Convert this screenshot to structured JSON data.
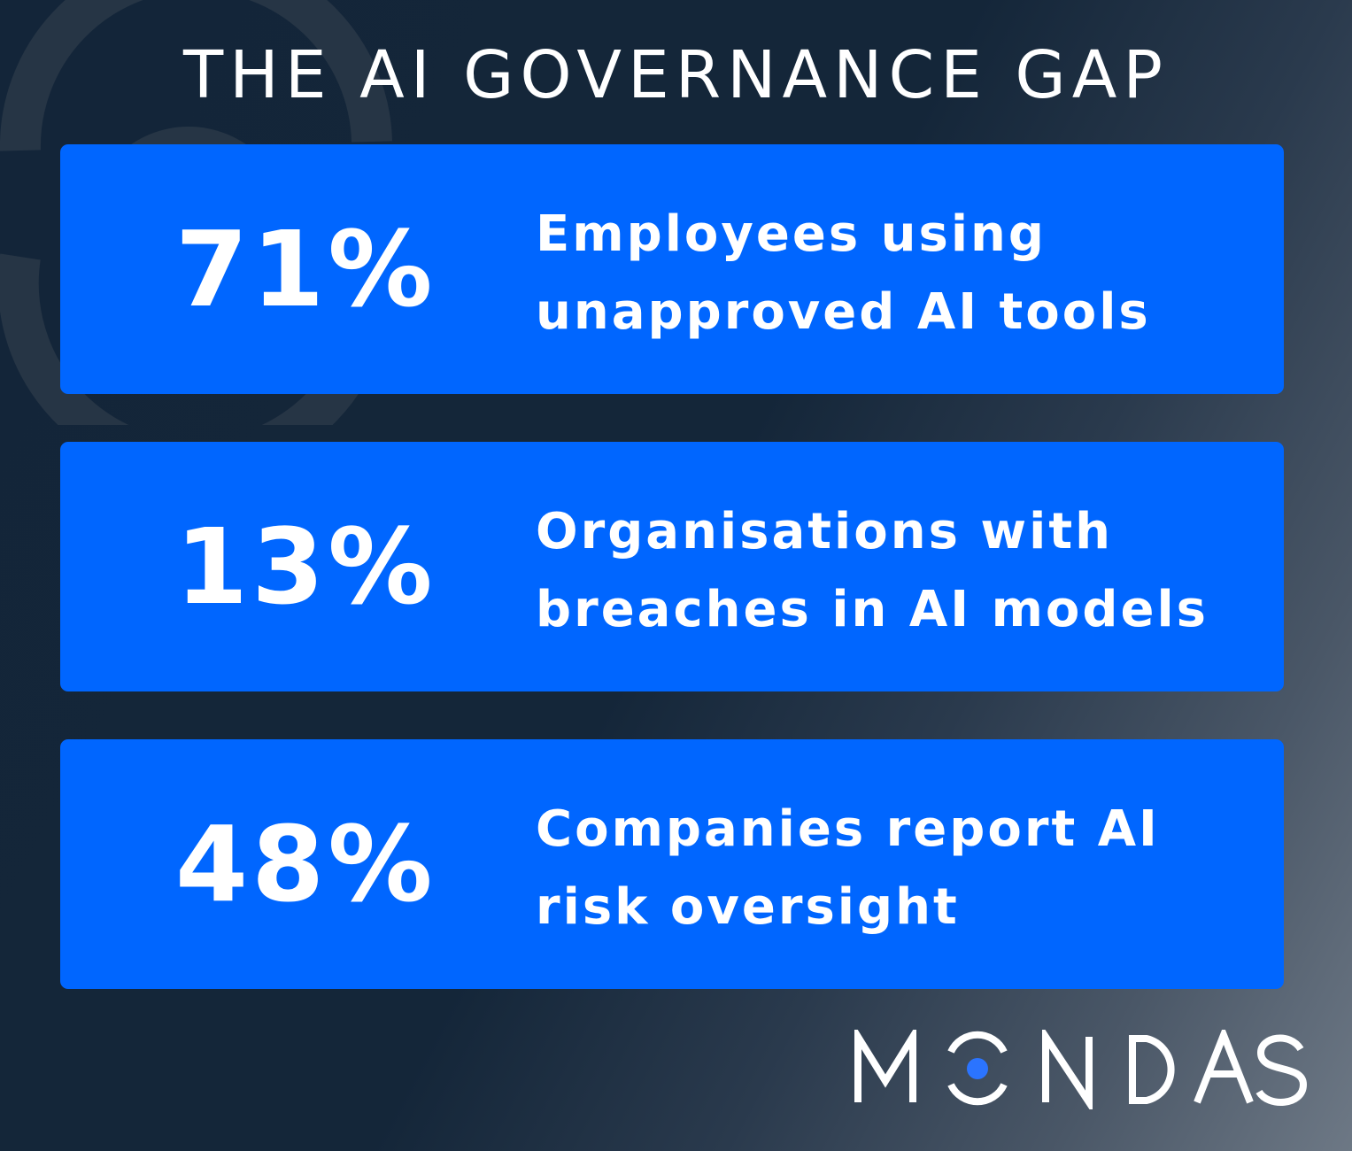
{
  "title": "THE AI GOVERNANCE GAP",
  "stats": [
    {
      "value": "71%",
      "line1": "Employees using",
      "line2": "unapproved AI tools"
    },
    {
      "value": "13%",
      "line1": "Organisations with",
      "line2": "breaches in AI models"
    },
    {
      "value": "48%",
      "line1": "Companies report AI",
      "line2": "risk oversight"
    }
  ],
  "logo": {
    "text": "MONDAS",
    "accent": "#2b74ff"
  },
  "colors": {
    "card": "#0066ff",
    "background": "#132539",
    "watermark": "#263545"
  }
}
